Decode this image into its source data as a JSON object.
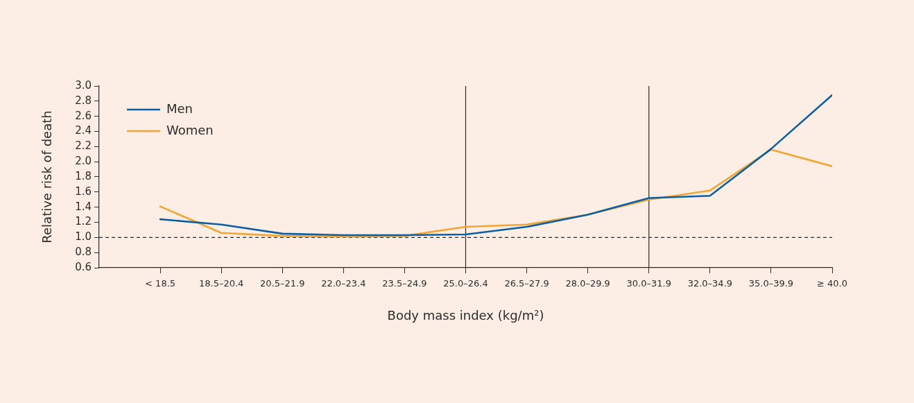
{
  "chart_data": {
    "type": "line",
    "xlabel": "Body mass index (kg/m²)",
    "ylabel": "Relative risk of death",
    "categories": [
      "< 18.5",
      "18.5–20.4",
      "20.5–21.9",
      "22.0–23.4",
      "23.5–24.9",
      "25.0–26.4",
      "26.5–27.9",
      "28.0–29.9",
      "30.0–31.9",
      "32.0–34.9",
      "35.0–39.9",
      "≥ 40.0"
    ],
    "ylim": [
      0.6,
      3.0
    ],
    "yticks": [
      0.6,
      0.8,
      {
        "value": 1,
        "label": "1.0"
      },
      1.2,
      1.4,
      1.6,
      1.8,
      {
        "value": 2,
        "label": "2.0"
      },
      2.2,
      2.4,
      2.6,
      2.8,
      {
        "value": 3,
        "label": "3.0"
      }
    ],
    "series": [
      {
        "name": "Men",
        "color": "#0b5fa5",
        "values": [
          1.24,
          1.17,
          1.05,
          1.03,
          1.03,
          1.04,
          1.14,
          1.3,
          1.52,
          1.55,
          2.17,
          2.88
        ]
      },
      {
        "name": "Women",
        "color": "#f2a533",
        "values": [
          1.41,
          1.06,
          1.02,
          1.01,
          1.02,
          1.14,
          1.17,
          1.3,
          1.5,
          1.62,
          2.16,
          1.94
        ]
      }
    ],
    "ref_lines": [
      {
        "axis": "x",
        "value": "25.0–26.4",
        "color": "#2b2b2b",
        "line_style": "solid"
      },
      {
        "axis": "x",
        "value": "30.0–31.9",
        "color": "#2b2b2b",
        "line_style": "solid"
      },
      {
        "axis": "y",
        "value": 1,
        "color": "#2b2b2b",
        "line_style": "dashed"
      }
    ],
    "legend": "top left",
    "grid": false,
    "marker": "none",
    "line_style": "solid"
  }
}
